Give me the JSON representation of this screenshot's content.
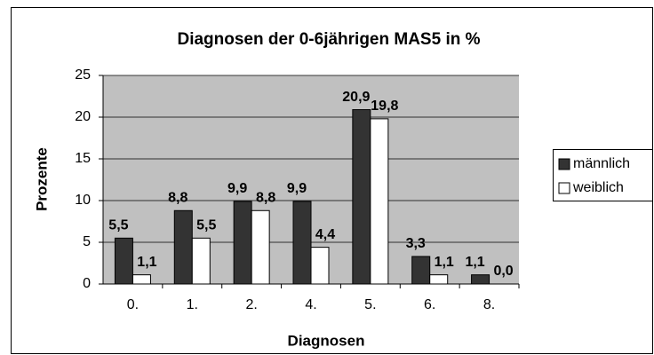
{
  "chart_data": {
    "type": "bar",
    "title": "Diagnosen der 0-6jährigen MAS5 in %",
    "x_label": "Diagnosen",
    "y_label": "Prozente",
    "categories": [
      "0.",
      "1.",
      "2.",
      "4.",
      "5.",
      "6.",
      "8."
    ],
    "series": [
      {
        "name": "männlich",
        "color": "#333333",
        "values": [
          5.5,
          8.8,
          9.9,
          9.9,
          20.9,
          3.3,
          1.1
        ],
        "value_labels": [
          "5,5",
          "8,8",
          "9,9",
          "9,9",
          "20,9",
          "3,3",
          "1,1"
        ]
      },
      {
        "name": "weiblich",
        "color": "#ffffff",
        "values": [
          1.1,
          5.5,
          8.8,
          4.4,
          19.8,
          1.1,
          0.0
        ],
        "value_labels": [
          "1,1",
          "5,5",
          "8,8",
          "4,4",
          "19,8",
          "1,1",
          "0,0"
        ]
      }
    ],
    "ylim": [
      0,
      25
    ],
    "yticks": [
      0,
      5,
      10,
      15,
      20,
      25
    ],
    "grid": true,
    "legend": "right"
  }
}
